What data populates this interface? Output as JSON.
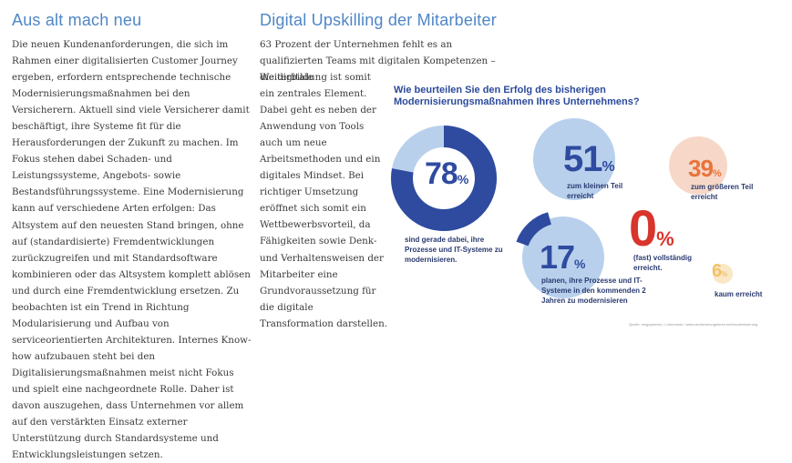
{
  "left": {
    "heading": "Aus alt mach neu",
    "body": "Die neuen Kundenanforderungen, die sich im Rahmen einer digitalisierten Customer Journey ergeben, erfordern entsprechende technische Modernisierungsmaßnahmen bei den Versicherern. Aktuell sind viele Versicherer damit beschäftigt, ihre Systeme fit für die Herausforderungen der Zukunft zu machen. Im Fokus stehen dabei Schaden- und Leistungssysteme, Angebots- sowie Bestandsführungssysteme. Eine Modernisierung kann auf verschiedene Arten erfolgen: Das Altsystem auf den neuesten Stand bringen, ohne auf (standardisierte) Fremdentwicklungen zurückzugreifen und mit Standardsoftware kombinieren oder das Altsystem komplett ablösen und durch eine Fremdentwicklung ersetzen. Zu beobachten ist ein Trend in Richtung Modularisierung und Aufbau von serviceorientierten Architekturen. Internes Know-how aufzubauen steht bei den Digitalisierungsmaßnahmen meist nicht Fokus und spielt eine nachgeordnete Rolle. Daher ist davon auszugehen, dass Unternehmen vor allem auf den verstärkten Einsatz externer Unterstützung durch Standardsysteme und Entwicklungsleistungen setzen."
  },
  "right": {
    "heading": "Digital Upskilling der Mitarbeiter",
    "intro": "63 Prozent der Unternehmen fehlt es an qualifizierten Teams mit digitalen Kompetenzen – die digitale",
    "body": "Weiterbildung ist somit ein zentrales Element. Dabei geht es neben der Anwendung von Tools auch um neue Arbeitsmethoden und ein digitales Mindset. Bei richtiger Umsetzung eröffnet sich somit ein Wettbewerbsvorteil, da Fähigkeiten sowie Denk- und Verhaltensweisen der Mitarbeiter eine Grundvoraussetzung für die digitale Transformation darstellen."
  },
  "infographic": {
    "question": "Wie beurteilen Sie den Erfolg des bisherigen Modernisierungsmaßnahmen Ihres Unternehmens?",
    "items": [
      {
        "value": "78",
        "unit": "%",
        "label": "sind gerade dabei, ihre Prozesse und IT-Systeme zu modernisieren.",
        "fraction": 0.78,
        "color": "#2f4ba0"
      },
      {
        "value": "51",
        "unit": "%",
        "label": "zum kleinen Teil erreicht",
        "color": "#b8d0ec"
      },
      {
        "value": "39",
        "unit": "%",
        "label": "zum größeren Teil erreicht",
        "color": "#f7d8c8"
      },
      {
        "value": "17",
        "unit": "%",
        "label": "planen, ihre Prozesse und IT-Systeme in den kommenden 2 Jahren zu modernisieren",
        "color": "#b8d0ec"
      },
      {
        "value": "0",
        "unit": "%",
        "label": "(fast) vollständig erreicht.",
        "color": "#d8352c"
      },
      {
        "value": "6",
        "unit": "%",
        "label": "kaum erreicht",
        "color": "#f2c26a"
      }
    ],
    "source": "Quelle: msgsystems / Lünendonk / www.versicherungsforen.net/modernisierung"
  },
  "colors": {
    "heading": "#4f86c6",
    "dark_blue": "#2f4ba0",
    "light_blue": "#b8d0ec",
    "red": "#d8352c",
    "orange": "#e8743c"
  }
}
